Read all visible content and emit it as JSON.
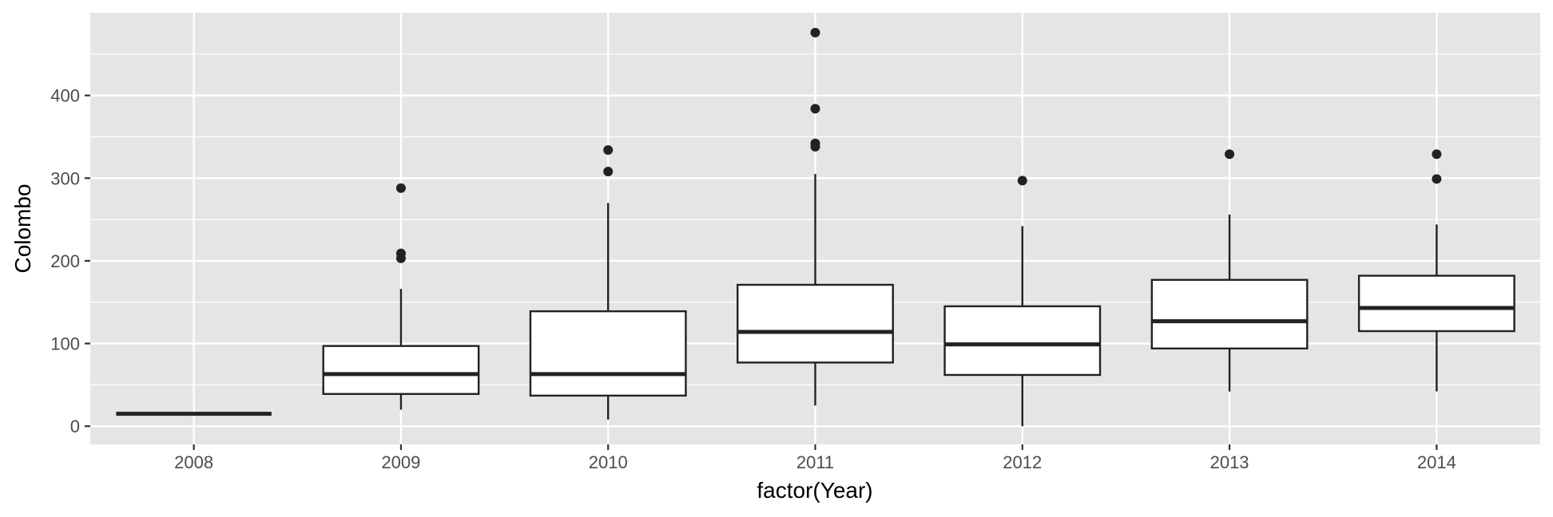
{
  "chart_data": {
    "type": "box",
    "xlabel": "factor(Year)",
    "ylabel": "Colombo",
    "categories": [
      "2008",
      "2009",
      "2010",
      "2011",
      "2012",
      "2013",
      "2014"
    ],
    "ylim": [
      -22,
      500
    ],
    "yticks": [
      0,
      100,
      200,
      300,
      400
    ],
    "boxes": [
      {
        "category": "2008",
        "min": 15,
        "q1": 15,
        "median": 15,
        "q3": 15,
        "max": 15,
        "outliers": []
      },
      {
        "category": "2009",
        "min": 20,
        "q1": 39,
        "median": 63,
        "q3": 97,
        "max": 166,
        "outliers": [
          203,
          209,
          288
        ]
      },
      {
        "category": "2010",
        "min": 8,
        "q1": 37,
        "median": 63,
        "q3": 139,
        "max": 270,
        "outliers": [
          308,
          334
        ]
      },
      {
        "category": "2011",
        "min": 25,
        "q1": 77,
        "median": 114,
        "q3": 171,
        "max": 305,
        "outliers": [
          338,
          342,
          384,
          476
        ]
      },
      {
        "category": "2012",
        "min": 0,
        "q1": 62,
        "median": 99,
        "q3": 145,
        "max": 242,
        "outliers": [
          297
        ]
      },
      {
        "category": "2013",
        "min": 42,
        "q1": 94,
        "median": 127,
        "q3": 177,
        "max": 256,
        "outliers": [
          329
        ]
      },
      {
        "category": "2014",
        "min": 42,
        "q1": 115,
        "median": 143,
        "q3": 182,
        "max": 244,
        "outliers": [
          299,
          329
        ]
      }
    ],
    "grid": true,
    "background": "#e5e5e5",
    "gridline_color": "#ffffff",
    "box_fill": "#ffffff",
    "box_stroke": "#222222"
  }
}
